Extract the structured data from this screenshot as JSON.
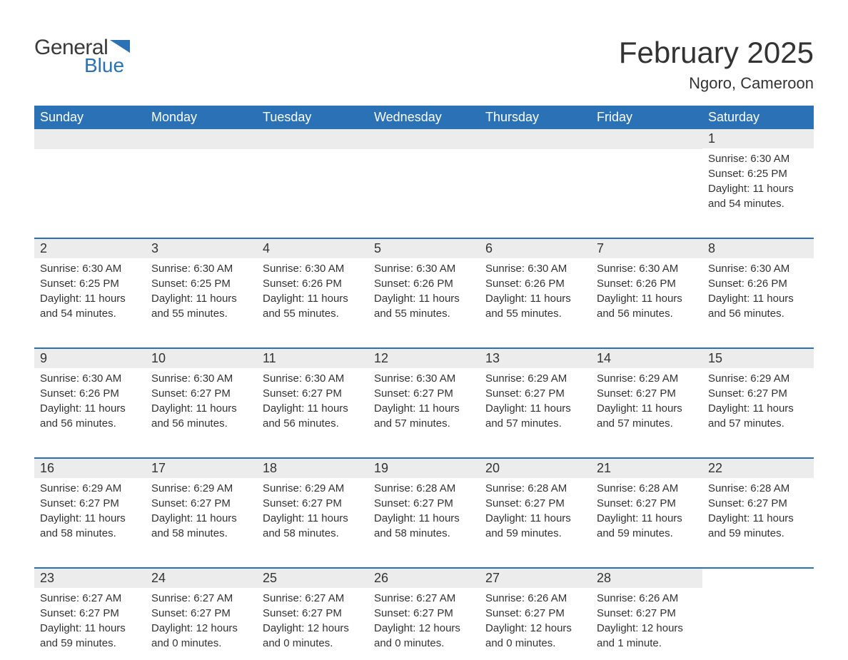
{
  "logo": {
    "text1": "General",
    "text2": "Blue",
    "color1": "#3a3a3a",
    "color2": "#2a72b5"
  },
  "title": "February 2025",
  "location": "Ngoro, Cameroon",
  "colors": {
    "header_bg": "#2a72b5",
    "header_text": "#ffffff",
    "daynum_bg": "#ececec",
    "text": "#333333",
    "border": "#2a72b5",
    "background": "#ffffff"
  },
  "day_headers": [
    "Sunday",
    "Monday",
    "Tuesday",
    "Wednesday",
    "Thursday",
    "Friday",
    "Saturday"
  ],
  "weeks": [
    [
      {
        "n": "",
        "sunrise": "",
        "sunset": "",
        "daylight": ""
      },
      {
        "n": "",
        "sunrise": "",
        "sunset": "",
        "daylight": ""
      },
      {
        "n": "",
        "sunrise": "",
        "sunset": "",
        "daylight": ""
      },
      {
        "n": "",
        "sunrise": "",
        "sunset": "",
        "daylight": ""
      },
      {
        "n": "",
        "sunrise": "",
        "sunset": "",
        "daylight": ""
      },
      {
        "n": "",
        "sunrise": "",
        "sunset": "",
        "daylight": ""
      },
      {
        "n": "1",
        "sunrise": "Sunrise: 6:30 AM",
        "sunset": "Sunset: 6:25 PM",
        "daylight": "Daylight: 11 hours and 54 minutes."
      }
    ],
    [
      {
        "n": "2",
        "sunrise": "Sunrise: 6:30 AM",
        "sunset": "Sunset: 6:25 PM",
        "daylight": "Daylight: 11 hours and 54 minutes."
      },
      {
        "n": "3",
        "sunrise": "Sunrise: 6:30 AM",
        "sunset": "Sunset: 6:25 PM",
        "daylight": "Daylight: 11 hours and 55 minutes."
      },
      {
        "n": "4",
        "sunrise": "Sunrise: 6:30 AM",
        "sunset": "Sunset: 6:26 PM",
        "daylight": "Daylight: 11 hours and 55 minutes."
      },
      {
        "n": "5",
        "sunrise": "Sunrise: 6:30 AM",
        "sunset": "Sunset: 6:26 PM",
        "daylight": "Daylight: 11 hours and 55 minutes."
      },
      {
        "n": "6",
        "sunrise": "Sunrise: 6:30 AM",
        "sunset": "Sunset: 6:26 PM",
        "daylight": "Daylight: 11 hours and 55 minutes."
      },
      {
        "n": "7",
        "sunrise": "Sunrise: 6:30 AM",
        "sunset": "Sunset: 6:26 PM",
        "daylight": "Daylight: 11 hours and 56 minutes."
      },
      {
        "n": "8",
        "sunrise": "Sunrise: 6:30 AM",
        "sunset": "Sunset: 6:26 PM",
        "daylight": "Daylight: 11 hours and 56 minutes."
      }
    ],
    [
      {
        "n": "9",
        "sunrise": "Sunrise: 6:30 AM",
        "sunset": "Sunset: 6:26 PM",
        "daylight": "Daylight: 11 hours and 56 minutes."
      },
      {
        "n": "10",
        "sunrise": "Sunrise: 6:30 AM",
        "sunset": "Sunset: 6:27 PM",
        "daylight": "Daylight: 11 hours and 56 minutes."
      },
      {
        "n": "11",
        "sunrise": "Sunrise: 6:30 AM",
        "sunset": "Sunset: 6:27 PM",
        "daylight": "Daylight: 11 hours and 56 minutes."
      },
      {
        "n": "12",
        "sunrise": "Sunrise: 6:30 AM",
        "sunset": "Sunset: 6:27 PM",
        "daylight": "Daylight: 11 hours and 57 minutes."
      },
      {
        "n": "13",
        "sunrise": "Sunrise: 6:29 AM",
        "sunset": "Sunset: 6:27 PM",
        "daylight": "Daylight: 11 hours and 57 minutes."
      },
      {
        "n": "14",
        "sunrise": "Sunrise: 6:29 AM",
        "sunset": "Sunset: 6:27 PM",
        "daylight": "Daylight: 11 hours and 57 minutes."
      },
      {
        "n": "15",
        "sunrise": "Sunrise: 6:29 AM",
        "sunset": "Sunset: 6:27 PM",
        "daylight": "Daylight: 11 hours and 57 minutes."
      }
    ],
    [
      {
        "n": "16",
        "sunrise": "Sunrise: 6:29 AM",
        "sunset": "Sunset: 6:27 PM",
        "daylight": "Daylight: 11 hours and 58 minutes."
      },
      {
        "n": "17",
        "sunrise": "Sunrise: 6:29 AM",
        "sunset": "Sunset: 6:27 PM",
        "daylight": "Daylight: 11 hours and 58 minutes."
      },
      {
        "n": "18",
        "sunrise": "Sunrise: 6:29 AM",
        "sunset": "Sunset: 6:27 PM",
        "daylight": "Daylight: 11 hours and 58 minutes."
      },
      {
        "n": "19",
        "sunrise": "Sunrise: 6:28 AM",
        "sunset": "Sunset: 6:27 PM",
        "daylight": "Daylight: 11 hours and 58 minutes."
      },
      {
        "n": "20",
        "sunrise": "Sunrise: 6:28 AM",
        "sunset": "Sunset: 6:27 PM",
        "daylight": "Daylight: 11 hours and 59 minutes."
      },
      {
        "n": "21",
        "sunrise": "Sunrise: 6:28 AM",
        "sunset": "Sunset: 6:27 PM",
        "daylight": "Daylight: 11 hours and 59 minutes."
      },
      {
        "n": "22",
        "sunrise": "Sunrise: 6:28 AM",
        "sunset": "Sunset: 6:27 PM",
        "daylight": "Daylight: 11 hours and 59 minutes."
      }
    ],
    [
      {
        "n": "23",
        "sunrise": "Sunrise: 6:27 AM",
        "sunset": "Sunset: 6:27 PM",
        "daylight": "Daylight: 11 hours and 59 minutes."
      },
      {
        "n": "24",
        "sunrise": "Sunrise: 6:27 AM",
        "sunset": "Sunset: 6:27 PM",
        "daylight": "Daylight: 12 hours and 0 minutes."
      },
      {
        "n": "25",
        "sunrise": "Sunrise: 6:27 AM",
        "sunset": "Sunset: 6:27 PM",
        "daylight": "Daylight: 12 hours and 0 minutes."
      },
      {
        "n": "26",
        "sunrise": "Sunrise: 6:27 AM",
        "sunset": "Sunset: 6:27 PM",
        "daylight": "Daylight: 12 hours and 0 minutes."
      },
      {
        "n": "27",
        "sunrise": "Sunrise: 6:26 AM",
        "sunset": "Sunset: 6:27 PM",
        "daylight": "Daylight: 12 hours and 0 minutes."
      },
      {
        "n": "28",
        "sunrise": "Sunrise: 6:26 AM",
        "sunset": "Sunset: 6:27 PM",
        "daylight": "Daylight: 12 hours and 1 minute."
      },
      {
        "n": "",
        "sunrise": "",
        "sunset": "",
        "daylight": ""
      }
    ]
  ]
}
